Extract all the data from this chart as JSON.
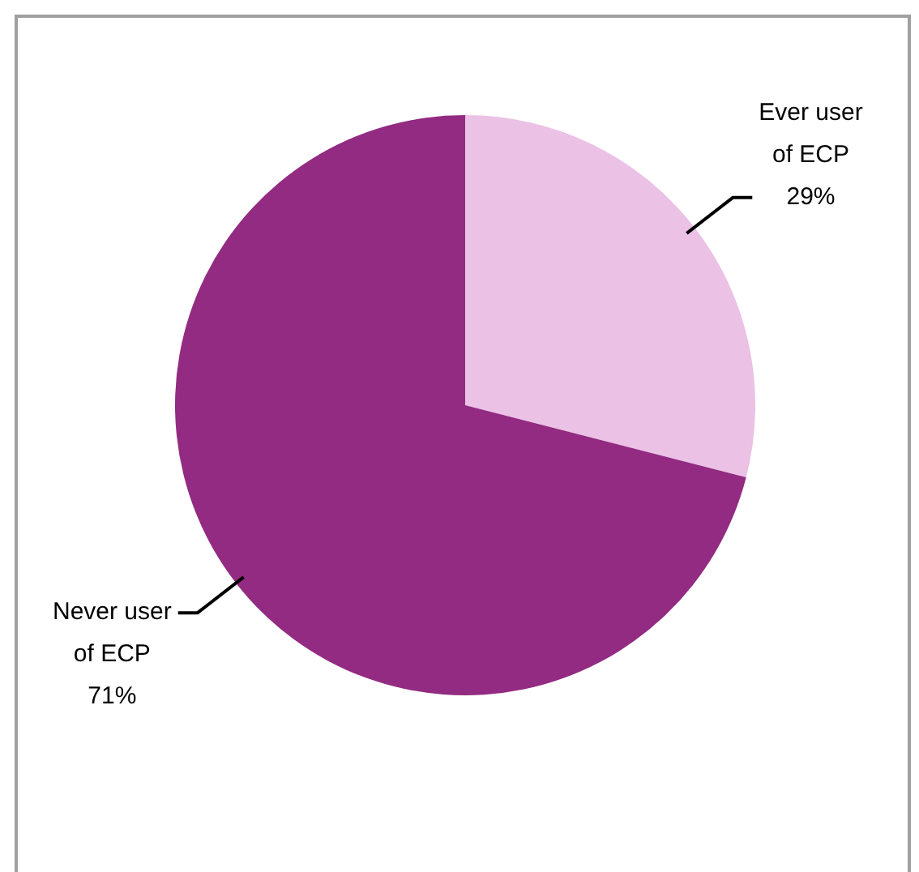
{
  "chart_data": {
    "type": "pie",
    "categories": [
      "Ever user of ECP",
      "Never user of ECP"
    ],
    "values": [
      29,
      71
    ],
    "colors": [
      "#ebc1e5",
      "#922b81"
    ],
    "value_labels": [
      "29%",
      "71%"
    ],
    "legend": false
  }
}
